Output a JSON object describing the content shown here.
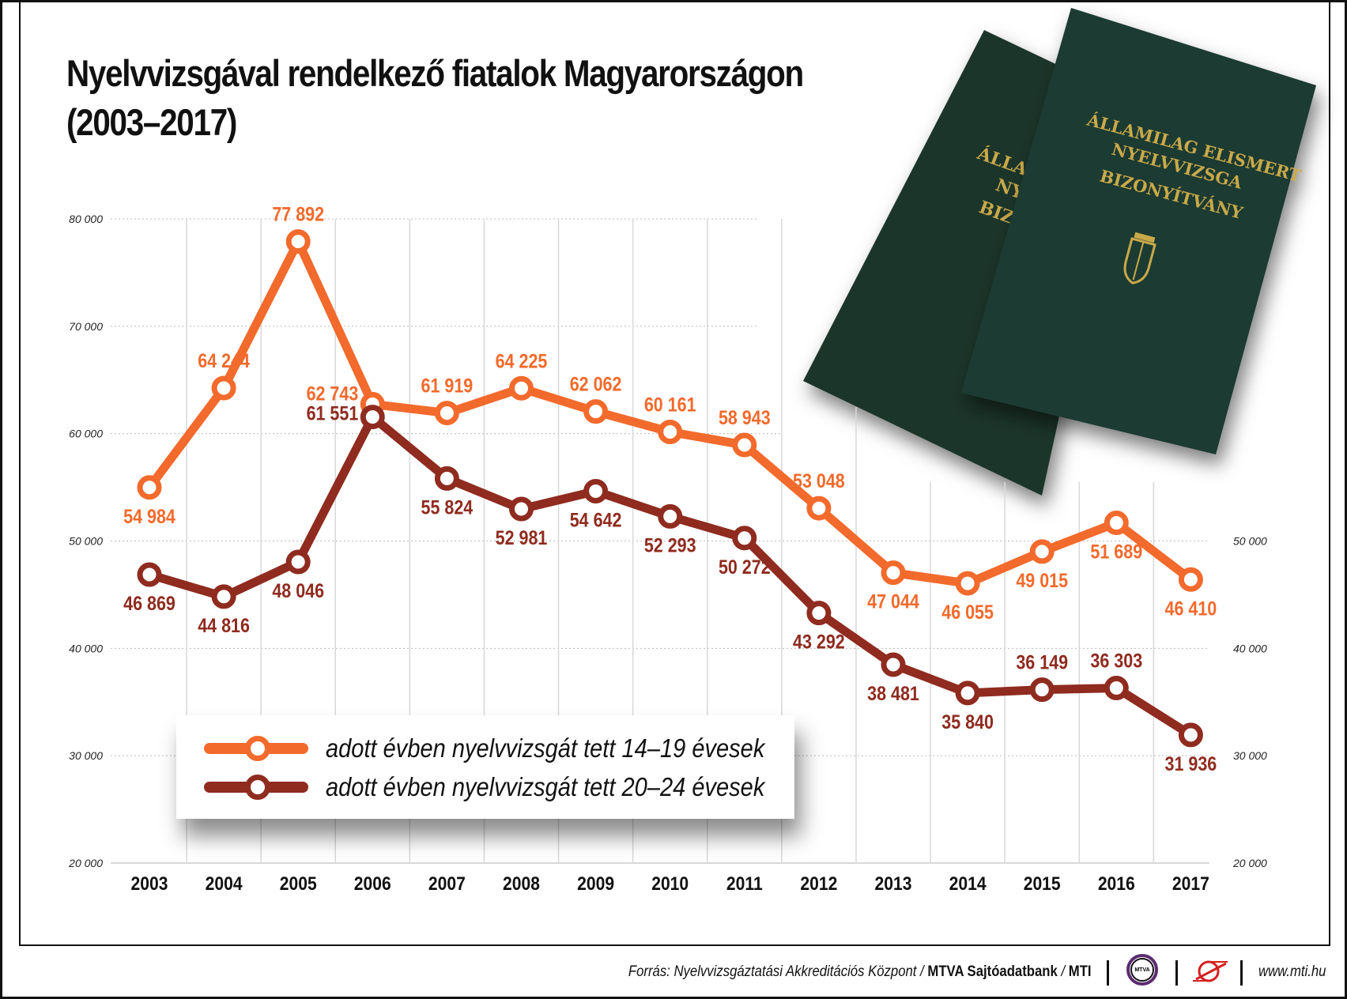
{
  "title_line1": "Nyelvvizsgával rendelkező fiatalok Magyarországon",
  "title_line2": "(2003–2017)",
  "book": {
    "line1": "ÁLLAMILAG ELISMERT",
    "line2": "NYELVVIZSGA",
    "line3": "BIZONYÍTVÁNY",
    "back_line1": "ÁLLAM",
    "back_line2": "NY",
    "back_line3": "BIZO",
    "cover_color": "#1f3a30",
    "text_color": "#c9a94a"
  },
  "chart_data": {
    "type": "line",
    "title": "Nyelvvizsgával rendelkező fiatalok Magyarországon (2003–2017)",
    "categories": [
      "2003",
      "2004",
      "2005",
      "2006",
      "2007",
      "2008",
      "2009",
      "2010",
      "2011",
      "2012",
      "2013",
      "2014",
      "2015",
      "2016",
      "2017"
    ],
    "ylim": [
      20000,
      80000
    ],
    "yticks_left": [
      "20 000",
      "30 000",
      "40 000",
      "50 000",
      "60 000",
      "70 000",
      "80 000"
    ],
    "yticks_right": [
      "20 000",
      "30 000",
      "40 000",
      "50 000"
    ],
    "grid": true,
    "legend_position": "bottom-left",
    "series": [
      {
        "name": "adott évben nyelvvizsgát tett 14–19 évesek",
        "color": "#f26a2c",
        "values": [
          54984,
          64244,
          77892,
          62743,
          61919,
          64225,
          62062,
          60161,
          58943,
          53048,
          47044,
          46055,
          49015,
          51689,
          46410
        ],
        "labels": [
          "54 984",
          "64 244",
          "77 892",
          "62 743",
          "61 919",
          "64 225",
          "62 062",
          "60 161",
          "58 943",
          "53 048",
          "47 044",
          "46 055",
          "49 015",
          "51 689",
          "46 410"
        ]
      },
      {
        "name": "adott évben nyelvvizsgát tett 20–24 évesek",
        "color": "#8f2b1f",
        "values": [
          46869,
          44816,
          48046,
          61551,
          55824,
          52981,
          54642,
          52293,
          50272,
          43292,
          38481,
          35840,
          36149,
          36303,
          31936
        ],
        "labels": [
          "46 869",
          "44 816",
          "48 046",
          "61 551",
          "55 824",
          "52 981",
          "54 642",
          "52 293",
          "50 272",
          "43 292",
          "38 481",
          "35 840",
          "36 149",
          "36 303",
          "31 936"
        ]
      }
    ]
  },
  "footer": {
    "source_prefix": "Forrás: Nyelvvizsgáztatási Akkreditációs Központ / ",
    "source_bold1": "MTVA Sajtóadatbank",
    "source_mid": " / ",
    "source_bold2": "MTI",
    "mtva_logo": "MTVA",
    "url": "www.mti.hu"
  }
}
